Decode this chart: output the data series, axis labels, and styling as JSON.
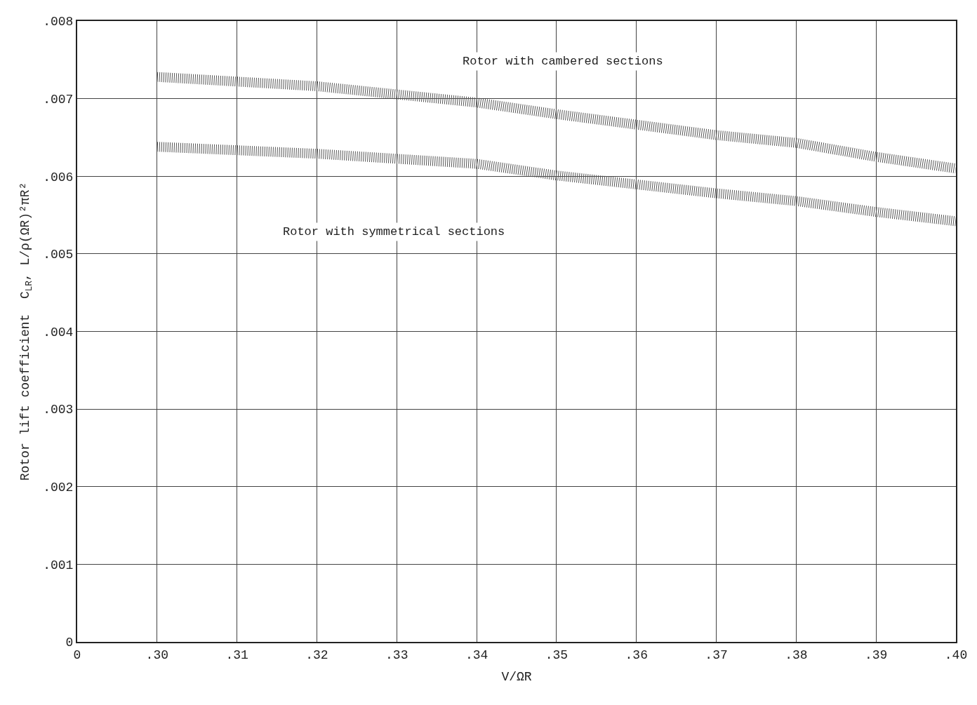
{
  "chart_data": {
    "type": "line",
    "xlabel": "V/ΩR",
    "ylabel": "Rotor lift coefficient  C$_{LR}$, L/ρ(ΩR)²πR²",
    "x": [
      0.3,
      0.32,
      0.34,
      0.35,
      0.37,
      0.38,
      0.39,
      0.4
    ],
    "series": [
      {
        "color": "#555555",
        "line_style": "dotted",
        "values": [
          0.00728,
          0.00716,
          0.00695,
          0.0068,
          0.00653,
          0.00643,
          0.00625,
          0.0061
        ]
      },
      {
        "color": "#555555",
        "line_style": "dotted",
        "values": [
          0.00638,
          0.00629,
          0.00616,
          0.00601,
          0.00578,
          0.00568,
          0.00554,
          0.00542
        ]
      }
    ],
    "xlim": [
      0.29,
      0.4
    ],
    "xticks": [
      {
        "value": 0.29,
        "label": "0"
      },
      {
        "value": 0.3,
        "label": ".30"
      },
      {
        "value": 0.31,
        "label": ".31"
      },
      {
        "value": 0.32,
        "label": ".32"
      },
      {
        "value": 0.33,
        "label": ".33"
      },
      {
        "value": 0.34,
        "label": ".34"
      },
      {
        "value": 0.35,
        "label": ".35"
      },
      {
        "value": 0.36,
        "label": ".36"
      },
      {
        "value": 0.37,
        "label": ".37"
      },
      {
        "value": 0.38,
        "label": ".38"
      },
      {
        "value": 0.39,
        "label": ".39"
      },
      {
        "value": 0.4,
        "label": ".40"
      }
    ],
    "ylim": [
      0,
      0.008
    ],
    "yticks": [
      0,
      {
        "value": 0.001,
        "label": ".001"
      },
      {
        "value": 0.002,
        "label": ".002"
      },
      {
        "value": 0.003,
        "label": ".003"
      },
      {
        "value": 0.004,
        "label": ".004"
      },
      {
        "value": 0.005,
        "label": ".005"
      },
      {
        "value": 0.006,
        "label": ".006"
      },
      {
        "value": 0.007,
        "label": ".007"
      },
      {
        "value": 0.008,
        "label": ".008"
      }
    ],
    "grid": true,
    "annotations": [
      "Rotor with cambered sections",
      "Rotor with symmetrical sections"
    ]
  }
}
